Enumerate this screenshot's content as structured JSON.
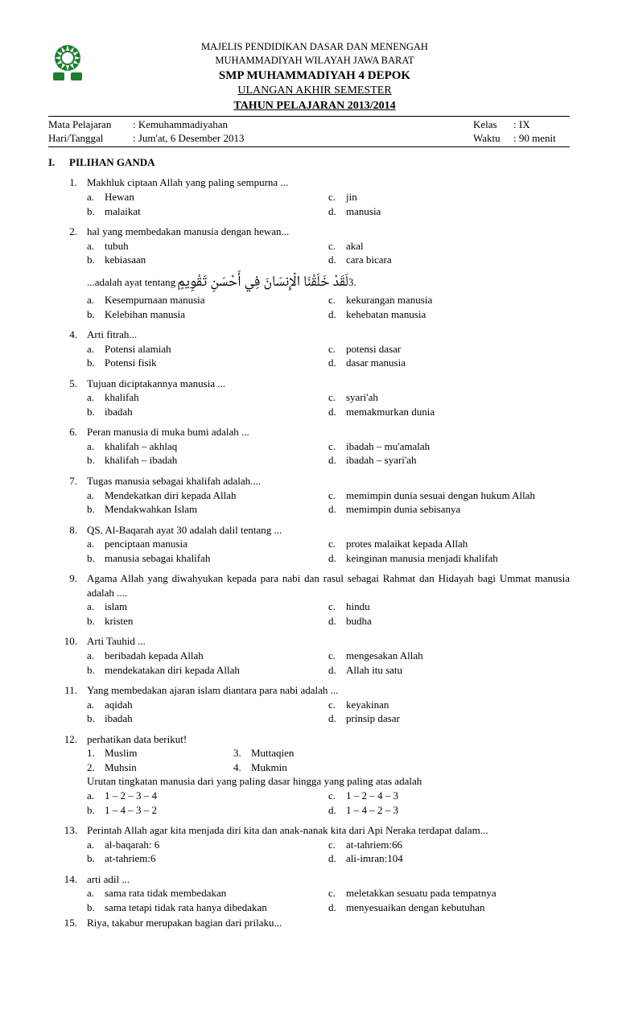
{
  "header": {
    "line1": "MAJELIS PENDIDIKAN DASAR DAN MENENGAH",
    "line2": "MUHAMMADIYAH WILAYAH JAWA BARAT",
    "line3": "SMP  MUHAMMADIYAH 4 DEPOK",
    "line4": "ULANGAN AKHIR SEMESTER",
    "line5": "TAHUN PELAJARAN 2013/2014"
  },
  "info": {
    "mapel_label": "Mata Pelajaran",
    "mapel": ": Kemuhammadiyahan",
    "kelas_label": "Kelas",
    "kelas": ": IX",
    "hari_label": "Hari/Tanggal",
    "hari": ": Jum'at, 6 Desember 2013",
    "waktu_label": "Waktu",
    "waktu": ": 90 menit"
  },
  "section": {
    "num": "I.",
    "title": "PILIHAN GANDA"
  },
  "q": [
    {
      "n": "1.",
      "p": "Makhluk ciptaan Allah yang paling sempurna ...",
      "a": "Hewan",
      "b": "malaikat",
      "c": "jin",
      "d": "manusia"
    },
    {
      "n": "2.",
      "p": "hal yang membedakan manusia dengan hewan...",
      "a": "tubuh",
      "b": "kebiasaan",
      "c": "akal",
      "d": "cara bicara"
    },
    {
      "n": "3.",
      "ar_n": ".3",
      "ar": "لَقَدْ خَلَقْنَا الْإِنسَانَ فِي أَحْسَنِ تَقْوِيمٍ",
      "tail": "...adalah ayat tentang",
      "a": "Kesempurnaan manusia",
      "b": "Kelebihan manusia",
      "c": "kekurangan manusia",
      "d": "kehebatan manusia"
    },
    {
      "n": "4.",
      "p": "Arti fitrah...",
      "a": "Potensi alamiah",
      "b": "Potensi fisik",
      "c": "potensi dasar",
      "d": "dasar manusia"
    },
    {
      "n": "5.",
      "p": "Tujuan diciptakannya manusia ...",
      "a": "khalifah",
      "b": "ibadah",
      "c": "syari'ah",
      "d": "memakmurkan dunia"
    },
    {
      "n": "6.",
      "p": "Peran manusia di muka bumi adalah ...",
      "a": "khalifah – akhlaq",
      "b": "khalifah – ibadah",
      "c": "ibadah – mu'amalah",
      "d": "ibadah – syari'ah"
    },
    {
      "n": "7.",
      "p": "Tugas manusia sebagai khalifah adalah....",
      "a": "Mendekatkan diri kepada Allah",
      "b": "Mendakwahkan Islam",
      "c": "memimpin dunia sesuai dengan hukum Allah",
      "d": "memimpin dunia sebisanya"
    },
    {
      "n": "8.",
      "p": "QS. Al-Baqarah ayat 30 adalah dalil tentang ...",
      "a": "penciptaan manusia",
      "b": "manusia sebagai khalifah",
      "c": "protes malaikat kepada Allah",
      "d": "keinginan manusia menjadi khalifah"
    },
    {
      "n": "9.",
      "p": "Agama Allah yang diwahyukan kepada para nabi dan rasul sebagai Rahmat dan Hidayah bagi Ummat manusia adalah ....",
      "a": "islam",
      "b": "kristen",
      "c": "hindu",
      "d": "budha"
    },
    {
      "n": "10.",
      "p": "Arti Tauhid ...",
      "a": "beribadah kepada Allah",
      "b": "mendekatakan diri kepada Allah",
      "c": "mengesakan Allah",
      "d": "Allah itu satu"
    },
    {
      "n": "11.",
      "p": "Yang membedakan ajaran islam diantara para nabi adalah ...",
      "a": "aqidah",
      "b": "ibadah",
      "c": "keyakinan",
      "d": "prinsip dasar"
    },
    {
      "n": "12.",
      "p": "perhatikan data berikut!",
      "list": [
        {
          "n": "1.",
          "t": "Muslim",
          "n2": "3.",
          "t2": "Muttaqien"
        },
        {
          "n": "2.",
          "t": "Muhsin",
          "n2": "4.",
          "t2": "Mukmin"
        }
      ],
      "p2": "Urutan tingkatan manusia dari yang paling dasar hingga yang paling atas adalah",
      "a": "1 – 2 – 3 – 4",
      "b": "1 – 4 – 3 – 2",
      "c": "1 – 2 – 4 – 3",
      "d": "1 – 4 – 2 – 3"
    },
    {
      "n": "13.",
      "p": "Perintah Allah agar kita menjada diri kita dan anak-nanak kita dari Api Neraka terdapat dalam...",
      "a": "al-baqarah: 6",
      "b": "at-tahriem:6",
      "c": "at-tahriem:66",
      "d": "ali-imran:104"
    },
    {
      "n": "14.",
      "p": "arti adil ...",
      "a": "sama rata tidak membedakan",
      "b": "sama tetapi tidak rata hanya dibedakan",
      "c": "meletakkan sesuatu pada tempatnya",
      "d": "menyesuaikan dengan kebutuhan"
    },
    {
      "n": "15.",
      "p": "Riya, takabur merupakan bagian dari prilaku..."
    }
  ],
  "labels": {
    "a": "a.",
    "b": "b.",
    "c": "c.",
    "d": "d."
  }
}
